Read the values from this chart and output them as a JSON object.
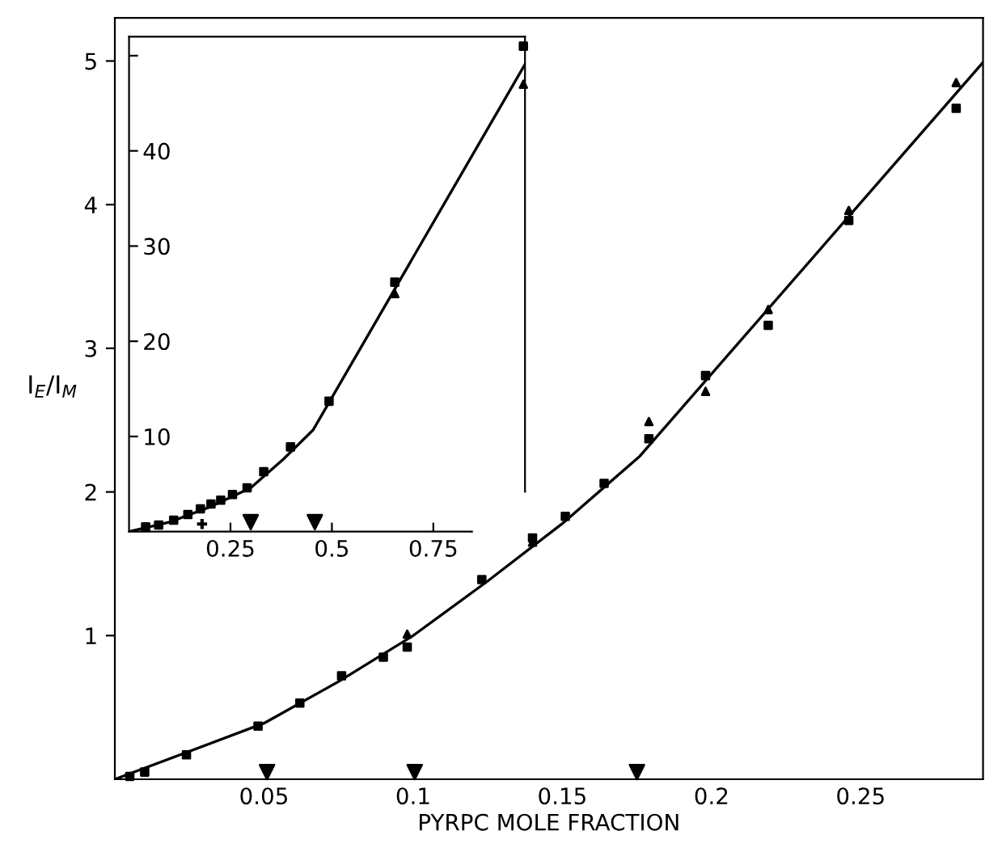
{
  "chart_data": [
    {
      "type": "scatter",
      "xlabel": "PYRPC MOLE FRACTION",
      "ylabel": "I$_{E}$/I$_{M}$",
      "xlim": [
        0,
        0.291
      ],
      "ylim": [
        0,
        5.3
      ],
      "xticks": [
        0.05,
        0.1,
        0.15,
        0.2,
        0.25
      ],
      "yticks": [
        1,
        2,
        3,
        4,
        5
      ],
      "grid": false,
      "legend": false,
      "series": [
        {
          "type": "scatter",
          "marker": "square",
          "color": "#000000",
          "x": [
            0.005,
            0.01,
            0.024,
            0.048,
            0.062,
            0.076,
            0.09,
            0.098,
            0.123,
            0.14,
            0.151,
            0.164,
            0.179,
            0.198,
            0.219,
            0.246,
            0.282
          ],
          "values": [
            0.02,
            0.05,
            0.17,
            0.37,
            0.53,
            0.72,
            0.85,
            0.92,
            1.39,
            1.68,
            1.83,
            2.06,
            2.37,
            2.81,
            3.16,
            3.89,
            4.67
          ]
        },
        {
          "type": "scatter",
          "marker": "triangle",
          "color": "#000000",
          "x": [
            0.098,
            0.14,
            0.179,
            0.198,
            0.219,
            0.246,
            0.282
          ],
          "values": [
            1.01,
            1.65,
            2.49,
            2.7,
            3.27,
            3.96,
            4.85
          ]
        },
        {
          "type": "line",
          "marker": "none",
          "color": "#000000",
          "x": [
            0,
            0.05,
            0.075,
            0.1,
            0.125,
            0.15,
            0.176,
            0.291
          ],
          "values": [
            0,
            0.39,
            0.68,
            1.0,
            1.38,
            1.78,
            2.25,
            4.99
          ]
        },
        {
          "type": "scatter",
          "marker": "triangle_down",
          "color": "#000000",
          "x": [
            0.051,
            0.1005,
            0.175
          ],
          "values": [
            0.05,
            0.05,
            0.05
          ]
        }
      ]
    },
    {
      "type": "scatter",
      "xlim": [
        0,
        0.976
      ],
      "ylim": [
        0,
        52
      ],
      "xticks": [
        0.25,
        0.5,
        0.75
      ],
      "yticks": [
        10,
        20,
        30,
        40,
        {
          "value": 50,
          "label": null
        }
      ],
      "grid": false,
      "legend": false,
      "series": [
        {
          "type": "scatter",
          "marker": "square",
          "color": "#000000",
          "x": [
            0.041,
            0.073,
            0.11,
            0.145,
            0.176,
            0.202,
            0.226,
            0.255,
            0.291,
            0.332,
            0.398,
            0.493,
            0.655,
            0.972
          ],
          "values": [
            0.5,
            0.7,
            1.2,
            1.8,
            2.4,
            2.9,
            3.3,
            3.9,
            4.6,
            6.3,
            8.9,
            13.7,
            26.2,
            51.0
          ]
        },
        {
          "type": "scatter",
          "marker": "triangle",
          "color": "#000000",
          "x": [
            0.655,
            0.972
          ],
          "values": [
            25.0,
            47.0
          ]
        },
        {
          "type": "line",
          "marker": "none",
          "color": "#000000",
          "x": [
            0,
            0.1,
            0.2,
            0.3,
            0.38,
            0.454,
            0.976
          ],
          "values": [
            0,
            1.0,
            2.6,
            4.6,
            7.6,
            10.7,
            49.1
          ]
        },
        {
          "type": "scatter",
          "marker": "triangle_down",
          "color": "#000000",
          "x": [
            0.3,
            0.458
          ],
          "values": [
            1.0,
            1.0
          ]
        },
        {
          "type": "scatter",
          "marker": "cross",
          "color": "#000000",
          "x": [
            0.18
          ],
          "values": [
            0.8
          ]
        }
      ]
    }
  ]
}
